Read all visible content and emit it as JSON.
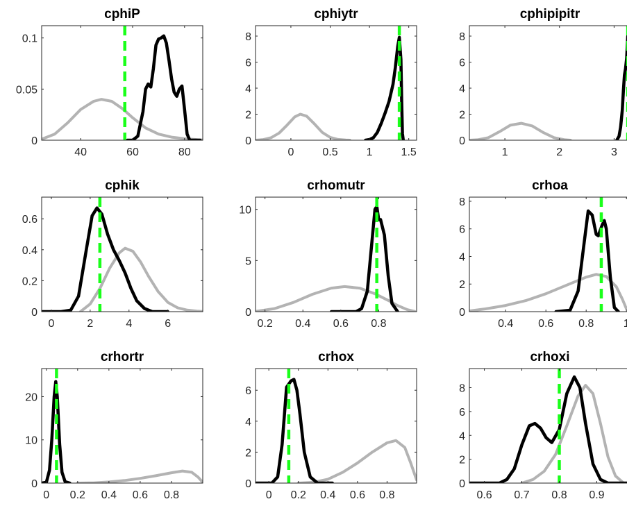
{
  "colors": {
    "prior": "#b3b3b3",
    "posterior": "#000000",
    "mode": "#1aff1a",
    "axis": "#262626"
  },
  "chart_data": [
    {
      "type": "line",
      "title": "cphiP",
      "xlim": [
        25,
        87
      ],
      "ylim": [
        0,
        0.112
      ],
      "xticks": [
        40,
        60,
        80
      ],
      "xtick_labels": [
        "40",
        "60",
        "80"
      ],
      "yticks": [
        0,
        0.05,
        0.1
      ],
      "ytick_labels": [
        "0",
        "0.05",
        "0.1"
      ],
      "mode_line": 57,
      "series": [
        {
          "role": "prior",
          "x": [
            25,
            30,
            35,
            40,
            45,
            48,
            52,
            56,
            60,
            65,
            70,
            75,
            80,
            85,
            87
          ],
          "y": [
            0.001,
            0.006,
            0.017,
            0.03,
            0.038,
            0.04,
            0.038,
            0.031,
            0.022,
            0.012,
            0.006,
            0.003,
            0.0015,
            0.0005,
            0.0003
          ]
        },
        {
          "role": "posterior",
          "x": [
            58,
            60,
            62,
            64,
            65,
            66,
            67,
            68,
            69,
            70,
            71,
            72,
            73,
            74,
            75,
            76,
            77,
            78,
            79,
            80,
            81,
            82,
            84,
            86
          ],
          "y": [
            0,
            0,
            0.004,
            0.028,
            0.05,
            0.055,
            0.052,
            0.07,
            0.093,
            0.099,
            0.1,
            0.102,
            0.095,
            0.078,
            0.06,
            0.047,
            0.043,
            0.05,
            0.053,
            0.03,
            0.006,
            0,
            0,
            0
          ]
        }
      ]
    },
    {
      "type": "line",
      "title": "cphiytr",
      "xlim": [
        -0.45,
        1.6
      ],
      "ylim": [
        0,
        8.8
      ],
      "xticks": [
        0,
        0.5,
        1,
        1.5
      ],
      "xtick_labels": [
        "0",
        "0.5",
        "1",
        "1.5"
      ],
      "yticks": [
        0,
        2,
        4,
        6,
        8
      ],
      "ytick_labels": [
        "0",
        "2",
        "4",
        "6",
        "8"
      ],
      "mode_line": 1.38,
      "series": [
        {
          "role": "prior",
          "x": [
            -0.45,
            -0.35,
            -0.25,
            -0.15,
            -0.05,
            0.05,
            0.12,
            0.2,
            0.3,
            0.4,
            0.5,
            0.6,
            0.7,
            0.75
          ],
          "y": [
            0.0,
            0.05,
            0.2,
            0.55,
            1.15,
            1.8,
            2.0,
            1.85,
            1.25,
            0.6,
            0.22,
            0.06,
            0.01,
            0.0
          ]
        },
        {
          "role": "posterior",
          "x": [
            0.95,
            1.0,
            1.05,
            1.1,
            1.15,
            1.2,
            1.25,
            1.3,
            1.33,
            1.36,
            1.38,
            1.4,
            1.41,
            1.42,
            1.43
          ],
          "y": [
            0,
            0.05,
            0.2,
            0.6,
            1.3,
            2.1,
            3.0,
            4.3,
            5.6,
            7.2,
            7.9,
            6.2,
            3.0,
            0.5,
            0
          ]
        }
      ]
    },
    {
      "type": "line",
      "title": "cphipipitr",
      "xlim": [
        0.35,
        3.3
      ],
      "ylim": [
        0,
        8.8
      ],
      "xticks": [
        1,
        2,
        3
      ],
      "xtick_labels": [
        "1",
        "2",
        "3"
      ],
      "yticks": [
        0,
        2,
        4,
        6,
        8
      ],
      "ytick_labels": [
        "0",
        "2",
        "4",
        "6",
        "8"
      ],
      "mode_line": 3.25,
      "series": [
        {
          "role": "prior",
          "x": [
            0.35,
            0.5,
            0.7,
            0.9,
            1.1,
            1.3,
            1.5,
            1.7,
            1.9,
            2.1,
            2.2
          ],
          "y": [
            0.0,
            0.03,
            0.2,
            0.65,
            1.15,
            1.3,
            1.1,
            0.6,
            0.2,
            0.03,
            0.0
          ]
        },
        {
          "role": "posterior",
          "x": [
            3.05,
            3.09,
            3.12,
            3.15,
            3.17,
            3.19,
            3.21,
            3.23,
            3.25,
            3.27,
            3.28,
            3.29,
            3.3
          ],
          "y": [
            0,
            0.3,
            1.0,
            2.3,
            3.8,
            5.0,
            5.5,
            6.3,
            8.0,
            6.8,
            3.0,
            0.6,
            0
          ]
        }
      ]
    },
    {
      "type": "line",
      "title": "cphik",
      "xlim": [
        -0.5,
        7.8
      ],
      "ylim": [
        0,
        0.74
      ],
      "xticks": [
        0,
        2,
        4,
        6
      ],
      "xtick_labels": [
        "0",
        "2",
        "4",
        "6"
      ],
      "yticks": [
        0,
        0.2,
        0.4,
        0.6
      ],
      "ytick_labels": [
        "0",
        "0.2",
        "0.4",
        "0.6"
      ],
      "mode_line": 2.5,
      "series": [
        {
          "role": "prior",
          "x": [
            1.5,
            2.0,
            2.5,
            3.0,
            3.5,
            3.8,
            4.2,
            4.6,
            5.0,
            5.5,
            6.0,
            6.5,
            7.0,
            7.5,
            7.8
          ],
          "y": [
            0.0,
            0.05,
            0.15,
            0.28,
            0.38,
            0.41,
            0.39,
            0.32,
            0.23,
            0.13,
            0.06,
            0.025,
            0.01,
            0.003,
            0.001
          ]
        },
        {
          "role": "posterior",
          "x": [
            -0.5,
            0.5,
            1.0,
            1.4,
            1.8,
            2.1,
            2.35,
            2.6,
            2.9,
            3.2,
            3.5,
            3.8,
            4.1,
            4.4,
            4.8,
            5.2,
            6.0
          ],
          "y": [
            0,
            0,
            0.01,
            0.1,
            0.4,
            0.62,
            0.67,
            0.63,
            0.5,
            0.4,
            0.33,
            0.25,
            0.15,
            0.07,
            0.02,
            0,
            0
          ]
        }
      ]
    },
    {
      "type": "line",
      "title": "crhomutr",
      "xlim": [
        0.15,
        1.0
      ],
      "ylim": [
        0,
        11.2
      ],
      "xticks": [
        0.2,
        0.4,
        0.6,
        0.8
      ],
      "xtick_labels": [
        "0.2",
        "0.4",
        "0.6",
        "0.8"
      ],
      "yticks": [
        0,
        5,
        10
      ],
      "ytick_labels": [
        "0",
        "5",
        "10"
      ],
      "mode_line": 0.79,
      "series": [
        {
          "role": "prior",
          "x": [
            0.15,
            0.25,
            0.35,
            0.45,
            0.55,
            0.62,
            0.7,
            0.78,
            0.85,
            0.9,
            0.95,
            0.99
          ],
          "y": [
            0.02,
            0.3,
            0.9,
            1.7,
            2.3,
            2.45,
            2.3,
            1.75,
            1.1,
            0.6,
            0.2,
            0.02
          ]
        },
        {
          "role": "posterior",
          "x": [
            0.55,
            0.68,
            0.71,
            0.74,
            0.76,
            0.78,
            0.79,
            0.8,
            0.81,
            0.83,
            0.85,
            0.87,
            0.9
          ],
          "y": [
            0,
            0,
            0.3,
            2.0,
            6.0,
            10.0,
            10.3,
            9.0,
            9.0,
            7.5,
            3.5,
            0.8,
            0
          ]
        }
      ]
    },
    {
      "type": "line",
      "title": "crhoa",
      "xlim": [
        0.22,
        1.02
      ],
      "ylim": [
        0,
        8.3
      ],
      "xticks": [
        0.4,
        0.6,
        0.8,
        1
      ],
      "xtick_labels": [
        "0.4",
        "0.6",
        "0.8",
        "1"
      ],
      "yticks": [
        0,
        2,
        4,
        6,
        8
      ],
      "ytick_labels": [
        "0",
        "2",
        "4",
        "6",
        "8"
      ],
      "mode_line": 0.875,
      "series": [
        {
          "role": "prior",
          "x": [
            0.22,
            0.3,
            0.4,
            0.5,
            0.6,
            0.7,
            0.8,
            0.85,
            0.9,
            0.95,
            0.98,
            1.0
          ],
          "y": [
            0.05,
            0.2,
            0.45,
            0.8,
            1.3,
            1.9,
            2.5,
            2.7,
            2.55,
            1.8,
            0.9,
            0.2
          ]
        },
        {
          "role": "posterior",
          "x": [
            0.65,
            0.72,
            0.76,
            0.79,
            0.81,
            0.83,
            0.85,
            0.86,
            0.88,
            0.89,
            0.9,
            0.92,
            0.94,
            0.96
          ],
          "y": [
            0,
            0.1,
            1.5,
            5.0,
            7.3,
            7.0,
            5.6,
            5.5,
            6.3,
            6.6,
            6.0,
            2.5,
            0.3,
            0
          ]
        }
      ]
    },
    {
      "type": "line",
      "title": "crhortr",
      "xlim": [
        -0.03,
        1.0
      ],
      "ylim": [
        0,
        26.5
      ],
      "xticks": [
        0,
        0.2,
        0.4,
        0.6,
        0.8
      ],
      "xtick_labels": [
        "0",
        "0.2",
        "0.4",
        "0.6",
        "0.8"
      ],
      "yticks": [
        0,
        10,
        20
      ],
      "ytick_labels": [
        "0",
        "10",
        "20"
      ],
      "mode_line": 0.065,
      "series": [
        {
          "role": "prior",
          "x": [
            0.2,
            0.3,
            0.4,
            0.5,
            0.6,
            0.7,
            0.8,
            0.87,
            0.93,
            0.97,
            1.0
          ],
          "y": [
            0,
            0.05,
            0.25,
            0.6,
            1.1,
            1.7,
            2.4,
            2.8,
            2.5,
            1.4,
            0.2
          ]
        },
        {
          "role": "posterior",
          "x": [
            -0.03,
            0.0,
            0.02,
            0.035,
            0.05,
            0.06,
            0.07,
            0.085,
            0.1,
            0.12,
            0.15
          ],
          "y": [
            0,
            0.2,
            3.0,
            10.0,
            20.0,
            23.5,
            20.0,
            9.0,
            2.5,
            0.3,
            0
          ]
        }
      ]
    },
    {
      "type": "line",
      "title": "crhox",
      "xlim": [
        -0.09,
        1.0
      ],
      "ylim": [
        0,
        7.4
      ],
      "xticks": [
        0,
        0.2,
        0.4,
        0.6,
        0.8
      ],
      "xtick_labels": [
        "0",
        "0.2",
        "0.4",
        "0.6",
        "0.8"
      ],
      "yticks": [
        0,
        2,
        4,
        6
      ],
      "ytick_labels": [
        "0",
        "2",
        "4",
        "6"
      ],
      "mode_line": 0.135,
      "series": [
        {
          "role": "prior",
          "x": [
            0.2,
            0.3,
            0.4,
            0.5,
            0.6,
            0.7,
            0.8,
            0.86,
            0.92,
            0.96,
            1.0
          ],
          "y": [
            0,
            0.05,
            0.25,
            0.7,
            1.3,
            2.0,
            2.6,
            2.75,
            2.3,
            1.3,
            0.2
          ]
        },
        {
          "role": "posterior",
          "x": [
            -0.09,
            0.02,
            0.06,
            0.09,
            0.12,
            0.15,
            0.17,
            0.19,
            0.21,
            0.24,
            0.28,
            0.33,
            0.43
          ],
          "y": [
            0,
            0,
            0.4,
            2.5,
            6.2,
            6.6,
            6.7,
            6.0,
            4.5,
            2.0,
            0.4,
            0,
            0
          ]
        }
      ]
    },
    {
      "type": "line",
      "title": "crhoxi",
      "xlim": [
        0.56,
        0.99
      ],
      "ylim": [
        0,
        9.6
      ],
      "xticks": [
        0.6,
        0.7,
        0.8,
        0.9
      ],
      "xtick_labels": [
        "0.6",
        "0.7",
        "0.8",
        "0.9"
      ],
      "yticks": [
        0,
        2,
        4,
        6,
        8
      ],
      "ytick_labels": [
        "0",
        "2",
        "4",
        "6",
        "8"
      ],
      "mode_line": 0.8,
      "series": [
        {
          "role": "prior",
          "x": [
            0.7,
            0.73,
            0.76,
            0.79,
            0.82,
            0.85,
            0.87,
            0.89,
            0.91,
            0.93,
            0.95,
            0.97
          ],
          "y": [
            0,
            0.3,
            1.0,
            2.4,
            4.8,
            7.3,
            8.2,
            7.5,
            5.0,
            2.2,
            0.6,
            0.05
          ]
        },
        {
          "role": "posterior",
          "x": [
            0.56,
            0.64,
            0.66,
            0.68,
            0.7,
            0.72,
            0.735,
            0.75,
            0.765,
            0.78,
            0.8,
            0.82,
            0.84,
            0.855,
            0.87,
            0.89,
            0.91,
            0.93,
            0.99
          ],
          "y": [
            0,
            0,
            0.3,
            1.2,
            3.2,
            4.8,
            5.0,
            4.6,
            3.8,
            3.4,
            4.5,
            7.5,
            8.9,
            8.0,
            5.0,
            1.6,
            0.3,
            0,
            0
          ]
        }
      ]
    }
  ]
}
